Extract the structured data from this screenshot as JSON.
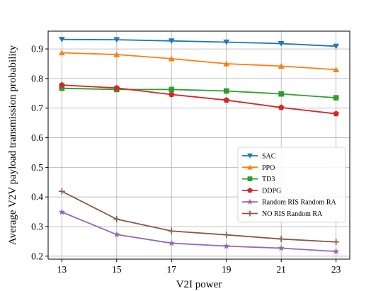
{
  "chart_data": {
    "type": "line",
    "xlabel": "V2I power",
    "ylabel": "Average V2V payload transmission probability",
    "x": [
      13,
      15,
      17,
      19,
      21,
      23
    ],
    "xlim": [
      12.5,
      23.5
    ],
    "ylim": [
      0.19,
      0.96
    ],
    "yticks": [
      0.2,
      0.3,
      0.4,
      0.5,
      0.6,
      0.7,
      0.8,
      0.9
    ],
    "ytick_labels": [
      "0.2",
      "0.3",
      "0.4",
      "0.5",
      "0.6",
      "0.7",
      "0.8",
      "0.9"
    ],
    "xtick_labels": [
      "13",
      "15",
      "17",
      "19",
      "21",
      "23"
    ],
    "grid": true,
    "legend_position": "center-right",
    "series": [
      {
        "name": "SAC",
        "color": "#1f77b4",
        "marker": "triangle-down",
        "values": [
          0.932,
          0.931,
          0.927,
          0.923,
          0.918,
          0.909
        ]
      },
      {
        "name": "PPO",
        "color": "#ff7f0e",
        "marker": "triangle-up",
        "values": [
          0.887,
          0.881,
          0.867,
          0.85,
          0.842,
          0.83
        ]
      },
      {
        "name": "TD3",
        "color": "#2ca02c",
        "marker": "square",
        "values": [
          0.767,
          0.763,
          0.763,
          0.758,
          0.748,
          0.735
        ]
      },
      {
        "name": "DDPG",
        "color": "#d62728",
        "marker": "pentagon",
        "values": [
          0.778,
          0.768,
          0.746,
          0.727,
          0.702,
          0.681
        ]
      },
      {
        "name": "Random RIS Random RA",
        "color": "#9467bd",
        "marker": "star",
        "values": [
          0.349,
          0.273,
          0.244,
          0.234,
          0.227,
          0.216
        ]
      },
      {
        "name": "NO RIS Random RA",
        "color": "#8c564b",
        "marker": "plus",
        "values": [
          0.419,
          0.325,
          0.285,
          0.272,
          0.258,
          0.248
        ]
      }
    ]
  }
}
